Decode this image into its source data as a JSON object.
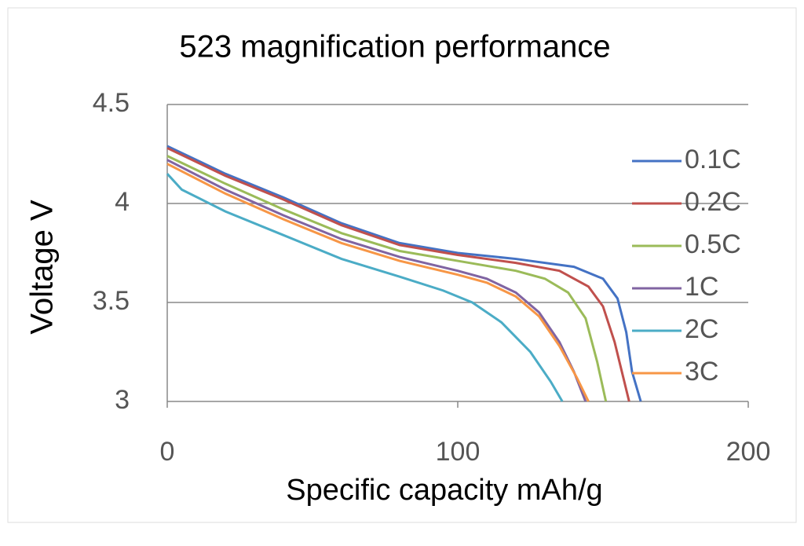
{
  "chart_data": {
    "type": "line",
    "title": "523 magnification performance",
    "x_label": "Specific capacity mAh/g",
    "y_label": "Voltage V",
    "xlim": [
      0,
      200
    ],
    "xticks": [
      0,
      100,
      200
    ],
    "ylim": [
      3,
      4.5
    ],
    "yticks": [
      3,
      3.5,
      4,
      4.5
    ],
    "grid": true,
    "legend": "right",
    "series": [
      {
        "name": "0.1C",
        "color": "#4472c4",
        "x": [
          0,
          20,
          40,
          60,
          80,
          100,
          120,
          140,
          150,
          155,
          158,
          160,
          163
        ],
        "values": [
          4.29,
          4.15,
          4.03,
          3.9,
          3.8,
          3.75,
          3.72,
          3.68,
          3.62,
          3.52,
          3.35,
          3.15,
          3.0
        ]
      },
      {
        "name": "0.2C",
        "color": "#c0504d",
        "x": [
          0,
          20,
          40,
          60,
          80,
          100,
          120,
          135,
          145,
          150,
          154,
          157,
          159
        ],
        "values": [
          4.28,
          4.14,
          4.02,
          3.89,
          3.79,
          3.74,
          3.7,
          3.66,
          3.58,
          3.48,
          3.3,
          3.12,
          3.0
        ]
      },
      {
        "name": "0.5C",
        "color": "#9bbb59",
        "x": [
          0,
          20,
          40,
          60,
          80,
          100,
          120,
          130,
          138,
          144,
          148,
          151
        ],
        "values": [
          4.24,
          4.1,
          3.97,
          3.85,
          3.76,
          3.71,
          3.66,
          3.62,
          3.55,
          3.42,
          3.2,
          3.0
        ]
      },
      {
        "name": "1C",
        "color": "#8064a2",
        "x": [
          0,
          20,
          40,
          60,
          80,
          100,
          110,
          120,
          128,
          135,
          140,
          144
        ],
        "values": [
          4.22,
          4.07,
          3.94,
          3.82,
          3.73,
          3.66,
          3.62,
          3.55,
          3.45,
          3.3,
          3.15,
          3.0
        ]
      },
      {
        "name": "2C",
        "color": "#4bacc6",
        "x": [
          0,
          5,
          20,
          40,
          60,
          80,
          95,
          105,
          115,
          125,
          132,
          136
        ],
        "values": [
          4.15,
          4.07,
          3.96,
          3.84,
          3.72,
          3.63,
          3.56,
          3.5,
          3.4,
          3.25,
          3.1,
          3.0
        ]
      },
      {
        "name": "3C",
        "color": "#f79646",
        "x": [
          0,
          20,
          40,
          60,
          80,
          100,
          110,
          120,
          128,
          135,
          141,
          145
        ],
        "values": [
          4.2,
          4.05,
          3.92,
          3.8,
          3.71,
          3.64,
          3.6,
          3.53,
          3.43,
          3.28,
          3.12,
          3.0
        ]
      }
    ]
  }
}
